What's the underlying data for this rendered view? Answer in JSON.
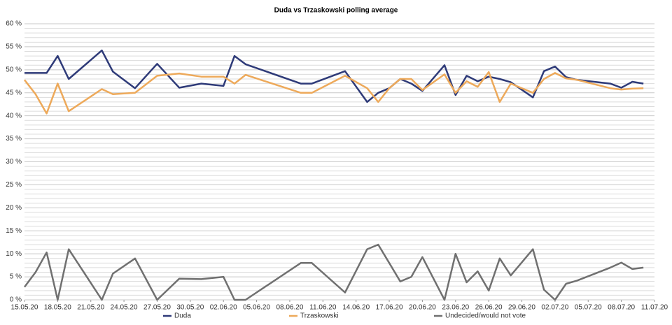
{
  "chart_data": {
    "type": "line",
    "title": "Duda vs Trzaskowski polling average",
    "x": [
      "2020-05-15",
      "2020-05-16",
      "2020-05-17",
      "2020-05-18",
      "2020-05-19",
      "2020-05-22",
      "2020-05-23",
      "2020-05-25",
      "2020-05-27",
      "2020-05-29",
      "2020-05-31",
      "2020-06-02",
      "2020-06-03",
      "2020-06-04",
      "2020-06-09",
      "2020-06-10",
      "2020-06-13",
      "2020-06-15",
      "2020-06-16",
      "2020-06-17",
      "2020-06-18",
      "2020-06-19",
      "2020-06-20",
      "2020-06-22",
      "2020-06-23",
      "2020-06-24",
      "2020-06-25",
      "2020-06-26",
      "2020-06-27",
      "2020-06-28",
      "2020-06-30",
      "2020-07-01",
      "2020-07-02",
      "2020-07-03",
      "2020-07-04",
      "2020-07-07",
      "2020-07-08",
      "2020-07-09",
      "2020-07-10"
    ],
    "series": [
      {
        "name": "Duda",
        "color": "#2e3a78",
        "values": [
          49.3,
          49.3,
          49.3,
          53.0,
          48.0,
          54.2,
          49.6,
          46.0,
          51.3,
          46.1,
          47.0,
          46.5,
          53.0,
          51.2,
          47.0,
          47.0,
          49.7,
          43.0,
          45.0,
          46.0,
          48.0,
          47.0,
          45.4,
          51.0,
          44.5,
          48.7,
          47.5,
          48.5,
          48.0,
          47.3,
          44.0,
          49.7,
          50.7,
          48.4,
          47.8,
          47.0,
          46.1,
          47.4,
          47.0
        ]
      },
      {
        "name": "Trzaskowski",
        "color": "#eda95a",
        "values": [
          47.8,
          44.7,
          40.5,
          47.0,
          41.0,
          45.8,
          44.7,
          45.0,
          48.7,
          49.2,
          48.5,
          48.5,
          47.0,
          48.9,
          45.0,
          45.0,
          48.7,
          46.0,
          43.0,
          46.0,
          48.0,
          48.0,
          45.6,
          49.0,
          45.0,
          47.5,
          46.3,
          49.5,
          43.0,
          47.0,
          45.0,
          48.0,
          49.3,
          48.1,
          47.8,
          46.0,
          45.7,
          45.9,
          46.0
        ]
      },
      {
        "name": "Undecided/would not vote",
        "color": "#707070",
        "values": [
          2.8,
          6.0,
          10.3,
          0,
          11.0,
          0,
          5.7,
          9.0,
          0,
          4.6,
          4.5,
          5.0,
          0,
          0,
          8.0,
          8.0,
          1.6,
          11.0,
          12.0,
          8.0,
          4.0,
          5.0,
          9.3,
          0,
          10.0,
          3.8,
          6.2,
          2.0,
          9.0,
          5.3,
          11.0,
          2.2,
          0,
          3.5,
          4.2,
          7.0,
          8.1,
          6.7,
          7.0
        ]
      }
    ],
    "xlim": [
      "2020-05-15",
      "2020-07-11"
    ],
    "xticks": [
      {
        "value": "2020-05-15",
        "label": "15.05.20"
      },
      {
        "value": "2020-05-18",
        "label": "18.05.20"
      },
      {
        "value": "2020-05-21",
        "label": "21.05.20"
      },
      {
        "value": "2020-05-24",
        "label": "24.05.20"
      },
      {
        "value": "2020-05-27",
        "label": "27.05.20"
      },
      {
        "value": "2020-05-30",
        "label": "30.05.20"
      },
      {
        "value": "2020-06-02",
        "label": "02.06.20"
      },
      {
        "value": "2020-06-05",
        "label": "05.06.20"
      },
      {
        "value": "2020-06-08",
        "label": "08.06.20"
      },
      {
        "value": "2020-06-11",
        "label": "11.06.20"
      },
      {
        "value": "2020-06-14",
        "label": "14.06.20"
      },
      {
        "value": "2020-06-17",
        "label": "17.06.20"
      },
      {
        "value": "2020-06-20",
        "label": "20.06.20"
      },
      {
        "value": "2020-06-23",
        "label": "23.06.20"
      },
      {
        "value": "2020-06-26",
        "label": "26.06.20"
      },
      {
        "value": "2020-06-29",
        "label": "29.06.20"
      },
      {
        "value": "2020-07-02",
        "label": "02.07.20"
      },
      {
        "value": "2020-07-05",
        "label": "05.07.20"
      },
      {
        "value": "2020-07-08",
        "label": "08.07.20"
      },
      {
        "value": "2020-07-11",
        "label": "11.07.20"
      }
    ],
    "ylim": [
      0,
      60
    ],
    "yticks": [
      {
        "value": 0,
        "label": "0 %"
      },
      {
        "value": 5,
        "label": "5 %"
      },
      {
        "value": 10,
        "label": "10 %"
      },
      {
        "value": 15,
        "label": "15 %"
      },
      {
        "value": 20,
        "label": "20 %"
      },
      {
        "value": 25,
        "label": "25 %"
      },
      {
        "value": 30,
        "label": "30 %"
      },
      {
        "value": 35,
        "label": "35 %"
      },
      {
        "value": 40,
        "label": "40 %"
      },
      {
        "value": 45,
        "label": "45 %"
      },
      {
        "value": 50,
        "label": "50 %"
      },
      {
        "value": 55,
        "label": "55 %"
      },
      {
        "value": 60,
        "label": "60 %"
      }
    ],
    "grid": true,
    "legend": "bottom"
  }
}
